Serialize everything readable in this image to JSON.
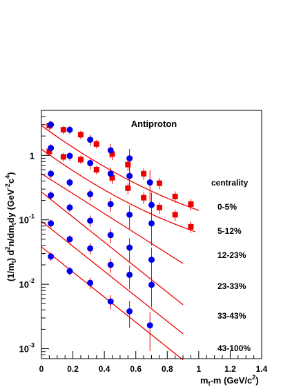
{
  "chart_data": {
    "type": "scatter",
    "title": "Antiproton",
    "xlabel": {
      "base": "m",
      "sub": "t",
      "rest": "-m (GeV/c",
      "sup": "2",
      "close": ")"
    },
    "ylabel": {
      "t1": "(1/m",
      "t1sub": "t",
      "t2": ") d",
      "t2sup": "2",
      "t3": "n/dm",
      "t3sub": "t",
      "t4": "dy (GeV",
      "t4sup": "-2",
      "t5": "c",
      "t5sup": "4",
      "t6": ")"
    },
    "x_range": [
      0,
      1.4
    ],
    "y_range": [
      0.0007,
      5
    ],
    "y_scale": "log",
    "x_ticks": [
      "0",
      "0.2",
      "0.4",
      "0.6",
      "0.8",
      "1",
      "1.2",
      "1.4"
    ],
    "y_ticks": [
      {
        "base": "1",
        "exp": ""
      },
      {
        "base": "10",
        "exp": "-1"
      },
      {
        "base": "10",
        "exp": "-2"
      },
      {
        "base": "10",
        "exp": "-3"
      }
    ],
    "legend_title": "centrality",
    "legend_labels": [
      "0-5%",
      "5-12%",
      "12-23%",
      "23-33%",
      "33-43%",
      "43-100%"
    ],
    "colors": {
      "circle": "#0000ee",
      "square": "#ee0000",
      "fit": "#ee0000",
      "axis": "#000000"
    },
    "square_series": [
      {
        "x": [
          0.05,
          0.14,
          0.25,
          0.35,
          0.45,
          0.55,
          0.65,
          0.75,
          0.85,
          0.95
        ],
        "y": [
          2.9,
          2.5,
          2.1,
          1.5,
          1.05,
          0.72,
          0.52,
          0.37,
          0.23,
          0.175
        ],
        "yerr": [
          0.15,
          0.15,
          0.15,
          0.15,
          0.2,
          0.2,
          0.2,
          0.2,
          0.2,
          0.2
        ]
      },
      {
        "x": [
          0.05,
          0.14,
          0.25,
          0.35,
          0.45,
          0.55,
          0.65,
          0.75,
          0.85,
          0.95
        ],
        "y": [
          1.15,
          0.95,
          0.86,
          0.6,
          0.45,
          0.31,
          0.22,
          0.155,
          0.12,
          0.078
        ],
        "yerr": [
          0.15,
          0.15,
          0.15,
          0.15,
          0.2,
          0.2,
          0.2,
          0.2,
          0.2,
          0.2
        ]
      }
    ],
    "circle_series": [
      {
        "x": [
          0.06,
          0.18,
          0.31,
          0.44,
          0.56,
          0.69
        ],
        "y": [
          3.0,
          2.5,
          1.75,
          1.2,
          0.9,
          0.38
        ],
        "yerr": [
          0.15,
          0.15,
          0.2,
          0.25,
          0.4,
          0.55
        ]
      },
      {
        "x": [
          0.06,
          0.18,
          0.31,
          0.44,
          0.56,
          0.7
        ],
        "y": [
          1.3,
          0.98,
          0.76,
          0.52,
          0.48,
          0.17
        ],
        "yerr": [
          0.15,
          0.15,
          0.2,
          0.25,
          0.4,
          0.55
        ]
      },
      {
        "x": [
          0.06,
          0.18,
          0.31,
          0.44,
          0.56,
          0.7
        ],
        "y": [
          0.52,
          0.38,
          0.25,
          0.175,
          0.12,
          0.088
        ],
        "yerr": [
          0.15,
          0.15,
          0.2,
          0.25,
          0.4,
          0.55
        ]
      },
      {
        "x": [
          0.06,
          0.18,
          0.31,
          0.44,
          0.56,
          0.7
        ],
        "y": [
          0.24,
          0.155,
          0.097,
          0.058,
          0.037,
          0.024
        ],
        "yerr": [
          0.15,
          0.15,
          0.2,
          0.25,
          0.4,
          0.55
        ]
      },
      {
        "x": [
          0.06,
          0.18,
          0.31,
          0.44,
          0.56,
          0.7
        ],
        "y": [
          0.088,
          0.05,
          0.036,
          0.02,
          0.014,
          0.0098
        ],
        "yerr": [
          0.15,
          0.15,
          0.2,
          0.25,
          0.4,
          0.55
        ]
      },
      {
        "x": [
          0.06,
          0.18,
          0.31,
          0.44,
          0.56,
          0.69
        ],
        "y": [
          0.027,
          0.016,
          0.0105,
          0.0054,
          0.0038,
          0.0023
        ],
        "yerr": [
          0.15,
          0.15,
          0.2,
          0.25,
          0.45,
          0.6
        ]
      }
    ],
    "fit_curves": [
      {
        "x0": 0.0,
        "y0": 2.9,
        "x1": 1.0,
        "y1": 0.14,
        "shape": "curved"
      },
      {
        "x0": 0.0,
        "y0": 1.25,
        "x1": 0.98,
        "y1": 0.065,
        "shape": "curved"
      },
      {
        "x0": 0.0,
        "y0": 0.52,
        "x1": 0.9,
        "y1": 0.021,
        "shape": "straight"
      },
      {
        "x0": 0.0,
        "y0": 0.27,
        "x1": 0.9,
        "y1": 0.0048,
        "shape": "straight"
      },
      {
        "x0": 0.0,
        "y0": 0.095,
        "x1": 0.9,
        "y1": 0.0017,
        "shape": "straight"
      },
      {
        "x0": 0.0,
        "y0": 0.038,
        "x1": 0.9,
        "y1": 0.00067,
        "shape": "straight"
      }
    ]
  }
}
